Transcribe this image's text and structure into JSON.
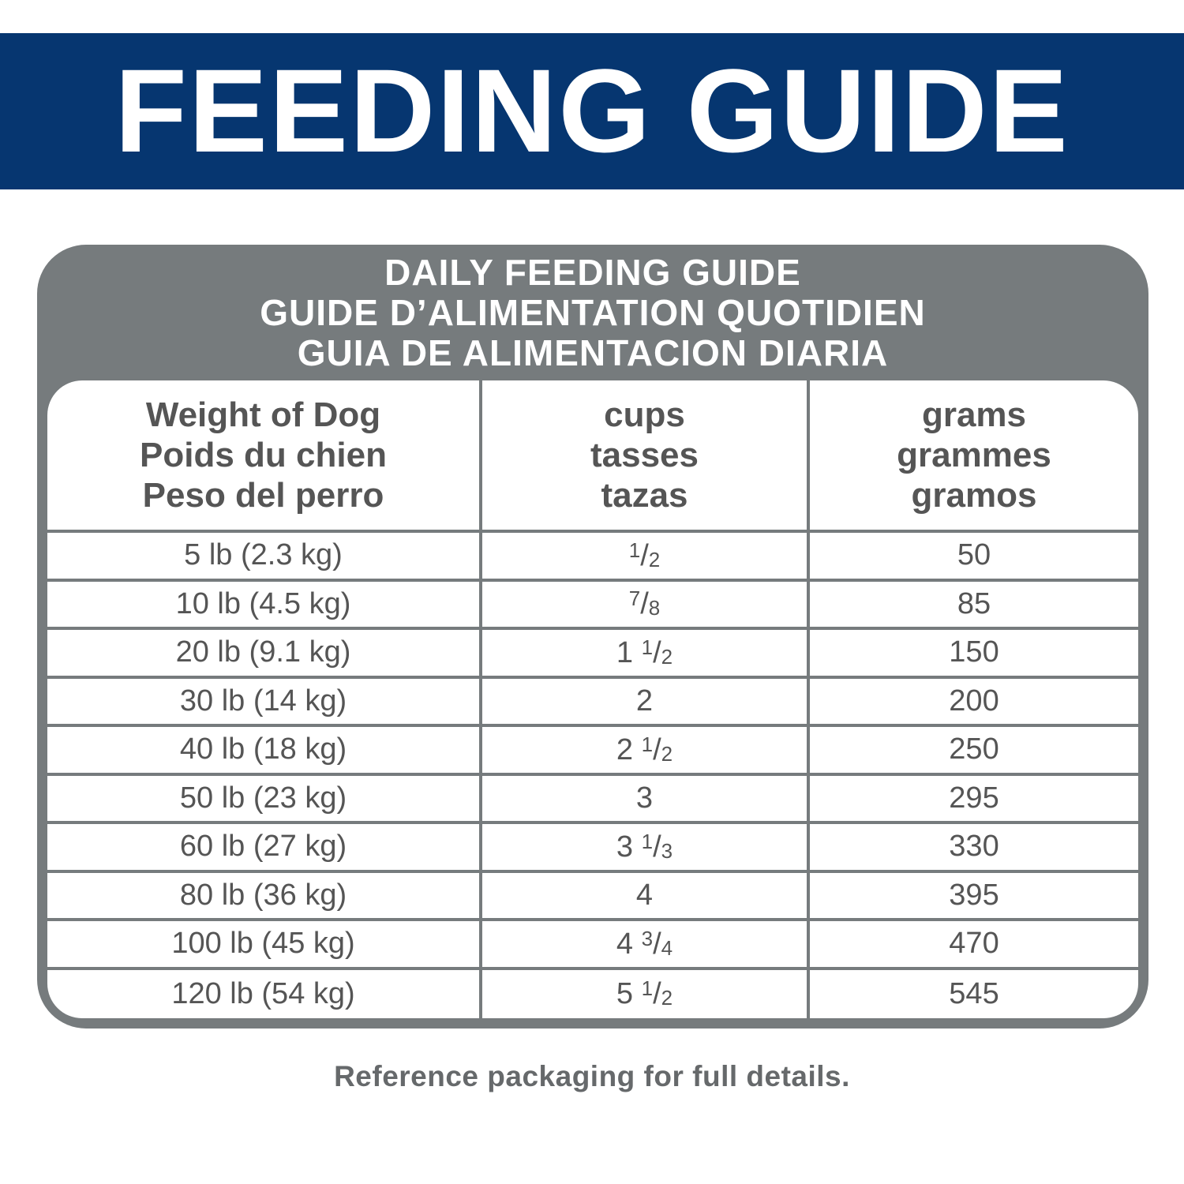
{
  "header": {
    "title": "FEEDING GUIDE"
  },
  "table": {
    "title": [
      "DAILY FEEDING GUIDE",
      "GUIDE D’ALIMENTATION QUOTIDIEN",
      "GUIA DE ALIMENTACION DIARIA"
    ],
    "columns": [
      [
        "Weight of Dog",
        "Poids du chien",
        "Peso del perro"
      ],
      [
        "cups",
        "tasses",
        "tazas"
      ],
      [
        "grams",
        "grammes",
        "gramos"
      ]
    ],
    "rows": [
      [
        "5 lb (2.3 kg)",
        "1/2",
        "50"
      ],
      [
        "10 lb (4.5 kg)",
        "7/8",
        "85"
      ],
      [
        "20 lb (9.1 kg)",
        "1 1/2",
        "150"
      ],
      [
        "30 lb (14 kg)",
        "2",
        "200"
      ],
      [
        "40 lb (18 kg)",
        "2 1/2",
        "250"
      ],
      [
        "50 lb (23 kg)",
        "3",
        "295"
      ],
      [
        "60 lb (27 kg)",
        "3 1/3",
        "330"
      ],
      [
        "80 lb (36 kg)",
        "4",
        "395"
      ],
      [
        "100 lb (45 kg)",
        "4 3/4",
        "470"
      ],
      [
        "120 lb (54 kg)",
        "5 1/2",
        "545"
      ]
    ]
  },
  "footer": {
    "note": "Reference packaging for full details."
  }
}
